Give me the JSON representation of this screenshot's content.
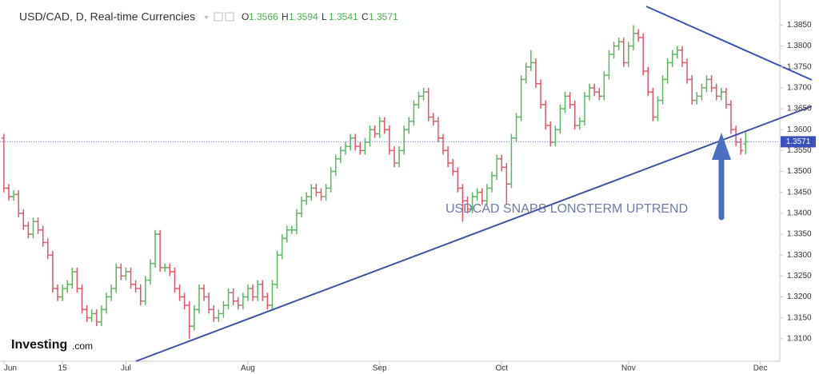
{
  "chart_data": {
    "type": "ohlc",
    "title": "USD/CAD, D, Real-time Currencies",
    "ohlc_labels": [
      "O",
      "H",
      "L",
      "C"
    ],
    "annotation": "USDCAD SNAPS LONGTERM UPTREND",
    "logo": [
      "Investing",
      ".com"
    ],
    "up_color": "#5cb660",
    "down_color": "#e0566a",
    "open": [
      1.358,
      1.346,
      1.344,
      1.3445,
      1.34,
      1.337,
      1.335,
      1.338,
      1.336,
      1.333,
      1.33,
      1.322,
      1.32,
      1.322,
      1.323,
      1.326,
      1.322,
      1.317,
      1.315,
      1.316,
      1.314,
      1.317,
      1.32,
      1.322,
      1.327,
      1.325,
      1.326,
      1.323,
      1.322,
      1.319,
      1.324,
      1.328,
      1.335,
      1.327,
      1.327,
      1.326,
      1.322,
      1.32,
      1.318,
      1.313,
      1.317,
      1.322,
      1.32,
      1.317,
      1.315,
      1.316,
      1.318,
      1.321,
      1.319,
      1.318,
      1.32,
      1.322,
      1.32,
      1.323,
      1.32,
      1.318,
      1.323,
      1.33,
      1.334,
      1.336,
      1.336,
      1.34,
      1.343,
      1.344,
      1.346,
      1.345,
      1.344,
      1.346,
      1.35,
      1.353,
      1.355,
      1.356,
      1.358,
      1.356,
      1.355,
      1.357,
      1.36,
      1.359,
      1.362,
      1.36,
      1.355,
      1.352,
      1.355,
      1.36,
      1.362,
      1.366,
      1.368,
      1.369,
      1.363,
      1.362,
      1.358,
      1.355,
      1.352,
      1.35,
      1.346,
      1.343,
      1.341,
      1.344,
      1.345,
      1.343,
      1.346,
      1.349,
      1.353,
      1.351,
      1.347,
      1.358,
      1.363,
      1.372,
      1.375,
      1.376,
      1.371,
      1.366,
      1.361,
      1.357,
      1.36,
      1.365,
      1.368,
      1.366,
      1.361,
      1.362,
      1.368,
      1.37,
      1.369,
      1.368,
      1.373,
      1.378,
      1.38,
      1.381,
      1.376,
      1.38,
      1.383,
      1.382,
      1.374,
      1.369,
      1.363,
      1.367,
      1.372,
      1.376,
      1.378,
      1.379,
      1.376,
      1.372,
      1.367,
      1.368,
      1.37,
      1.372,
      1.37,
      1.368,
      1.369,
      1.366,
      1.36,
      1.357,
      1.3566
    ],
    "high": [
      1.359,
      1.347,
      1.3455,
      1.3455,
      1.341,
      1.338,
      1.339,
      1.339,
      1.337,
      1.334,
      1.331,
      1.323,
      1.323,
      1.324,
      1.327,
      1.327,
      1.323,
      1.318,
      1.317,
      1.317,
      1.318,
      1.321,
      1.323,
      1.328,
      1.328,
      1.327,
      1.327,
      1.324,
      1.323,
      1.325,
      1.329,
      1.336,
      1.336,
      1.328,
      1.328,
      1.327,
      1.323,
      1.321,
      1.319,
      1.318,
      1.323,
      1.323,
      1.321,
      1.318,
      1.317,
      1.319,
      1.322,
      1.322,
      1.32,
      1.321,
      1.323,
      1.323,
      1.324,
      1.324,
      1.321,
      1.324,
      1.331,
      1.335,
      1.337,
      1.337,
      1.341,
      1.344,
      1.345,
      1.347,
      1.347,
      1.346,
      1.347,
      1.351,
      1.354,
      1.356,
      1.357,
      1.359,
      1.359,
      1.357,
      1.358,
      1.361,
      1.361,
      1.363,
      1.363,
      1.361,
      1.356,
      1.356,
      1.361,
      1.363,
      1.367,
      1.369,
      1.37,
      1.37,
      1.364,
      1.363,
      1.359,
      1.356,
      1.353,
      1.351,
      1.347,
      1.344,
      1.345,
      1.346,
      1.346,
      1.347,
      1.35,
      1.354,
      1.354,
      1.352,
      1.359,
      1.364,
      1.373,
      1.376,
      1.379,
      1.377,
      1.372,
      1.367,
      1.362,
      1.361,
      1.366,
      1.369,
      1.369,
      1.367,
      1.363,
      1.369,
      1.371,
      1.371,
      1.37,
      1.374,
      1.379,
      1.381,
      1.382,
      1.382,
      1.381,
      1.385,
      1.384,
      1.383,
      1.375,
      1.37,
      1.368,
      1.373,
      1.377,
      1.379,
      1.38,
      1.38,
      1.377,
      1.373,
      1.369,
      1.371,
      1.373,
      1.373,
      1.371,
      1.37,
      1.37,
      1.367,
      1.361,
      1.358,
      1.3594
    ],
    "low": [
      1.345,
      1.343,
      1.343,
      1.339,
      1.336,
      1.334,
      1.334,
      1.335,
      1.332,
      1.329,
      1.321,
      1.319,
      1.319,
      1.321,
      1.322,
      1.321,
      1.316,
      1.314,
      1.314,
      1.313,
      1.313,
      1.316,
      1.319,
      1.321,
      1.324,
      1.324,
      1.322,
      1.321,
      1.318,
      1.318,
      1.323,
      1.327,
      1.326,
      1.326,
      1.325,
      1.321,
      1.319,
      1.317,
      1.31,
      1.312,
      1.316,
      1.319,
      1.316,
      1.314,
      1.314,
      1.315,
      1.317,
      1.318,
      1.317,
      1.317,
      1.319,
      1.319,
      1.319,
      1.319,
      1.317,
      1.317,
      1.322,
      1.329,
      1.333,
      1.335,
      1.335,
      1.339,
      1.342,
      1.343,
      1.344,
      1.343,
      1.343,
      1.345,
      1.349,
      1.352,
      1.354,
      1.355,
      1.355,
      1.354,
      1.354,
      1.356,
      1.358,
      1.358,
      1.359,
      1.354,
      1.351,
      1.351,
      1.354,
      1.359,
      1.361,
      1.365,
      1.367,
      1.362,
      1.361,
      1.357,
      1.354,
      1.351,
      1.349,
      1.345,
      1.338,
      1.34,
      1.34,
      1.343,
      1.342,
      1.342,
      1.345,
      1.348,
      1.35,
      1.342,
      1.346,
      1.357,
      1.362,
      1.371,
      1.374,
      1.37,
      1.365,
      1.36,
      1.356,
      1.356,
      1.359,
      1.364,
      1.365,
      1.36,
      1.36,
      1.361,
      1.367,
      1.368,
      1.367,
      1.367,
      1.372,
      1.377,
      1.379,
      1.375,
      1.375,
      1.379,
      1.381,
      1.373,
      1.368,
      1.362,
      1.362,
      1.366,
      1.371,
      1.375,
      1.377,
      1.375,
      1.371,
      1.366,
      1.366,
      1.367,
      1.369,
      1.369,
      1.367,
      1.367,
      1.365,
      1.359,
      1.356,
      1.354,
      1.3541
    ],
    "close": [
      1.346,
      1.344,
      1.3445,
      1.34,
      1.337,
      1.335,
      1.338,
      1.336,
      1.333,
      1.33,
      1.322,
      1.32,
      1.322,
      1.323,
      1.326,
      1.322,
      1.317,
      1.315,
      1.316,
      1.314,
      1.317,
      1.32,
      1.322,
      1.327,
      1.325,
      1.326,
      1.323,
      1.322,
      1.319,
      1.324,
      1.328,
      1.335,
      1.327,
      1.327,
      1.326,
      1.322,
      1.32,
      1.318,
      1.313,
      1.317,
      1.322,
      1.32,
      1.317,
      1.315,
      1.316,
      1.318,
      1.321,
      1.319,
      1.318,
      1.32,
      1.322,
      1.32,
      1.323,
      1.32,
      1.318,
      1.323,
      1.33,
      1.334,
      1.336,
      1.336,
      1.34,
      1.343,
      1.344,
      1.346,
      1.345,
      1.344,
      1.346,
      1.35,
      1.353,
      1.355,
      1.356,
      1.358,
      1.356,
      1.355,
      1.357,
      1.36,
      1.359,
      1.362,
      1.36,
      1.355,
      1.352,
      1.355,
      1.36,
      1.362,
      1.366,
      1.368,
      1.369,
      1.363,
      1.362,
      1.358,
      1.355,
      1.352,
      1.35,
      1.346,
      1.343,
      1.341,
      1.344,
      1.345,
      1.343,
      1.346,
      1.349,
      1.353,
      1.351,
      1.347,
      1.358,
      1.363,
      1.372,
      1.375,
      1.376,
      1.371,
      1.366,
      1.361,
      1.357,
      1.36,
      1.365,
      1.368,
      1.366,
      1.361,
      1.362,
      1.368,
      1.37,
      1.369,
      1.368,
      1.373,
      1.378,
      1.38,
      1.381,
      1.376,
      1.38,
      1.383,
      1.382,
      1.374,
      1.369,
      1.363,
      1.367,
      1.372,
      1.376,
      1.378,
      1.379,
      1.376,
      1.372,
      1.367,
      1.368,
      1.37,
      1.372,
      1.37,
      1.368,
      1.369,
      1.366,
      1.36,
      1.357,
      1.355,
      1.3571
    ],
    "ylim": [
      1.305,
      1.391
    ],
    "yticks": [
      {
        "value": 1.31,
        "label": "1.3100"
      },
      {
        "value": 1.315,
        "label": "1.3150"
      },
      {
        "value": 1.32,
        "label": "1.3200"
      },
      {
        "value": 1.325,
        "label": "1.3250"
      },
      {
        "value": 1.33,
        "label": "1.3300"
      },
      {
        "value": 1.335,
        "label": "1.3350"
      },
      {
        "value": 1.34,
        "label": "1.3400"
      },
      {
        "value": 1.345,
        "label": "1.3450"
      },
      {
        "value": 1.35,
        "label": "1.3500"
      },
      {
        "value": 1.355,
        "label": "1.3550"
      },
      {
        "value": 1.36,
        "label": "1.3600"
      },
      {
        "value": 1.365,
        "label": "1.3650"
      },
      {
        "value": 1.37,
        "label": "1.3700"
      },
      {
        "value": 1.375,
        "label": "1.3750"
      },
      {
        "value": 1.38,
        "label": "1.3800"
      },
      {
        "value": 1.385,
        "label": "1.3850"
      }
    ],
    "xlim": [
      -0.8,
      159
    ],
    "xticks": [
      {
        "value": 0,
        "label": "Jun"
      },
      {
        "value": 12,
        "label": "15"
      },
      {
        "value": 25,
        "label": "Jul"
      },
      {
        "value": 50,
        "label": "Aug"
      },
      {
        "value": 77,
        "label": "Sep"
      },
      {
        "value": 102,
        "label": "Oct"
      },
      {
        "value": 128,
        "label": "Nov"
      },
      {
        "value": 155,
        "label": "Dec"
      }
    ]
  }
}
